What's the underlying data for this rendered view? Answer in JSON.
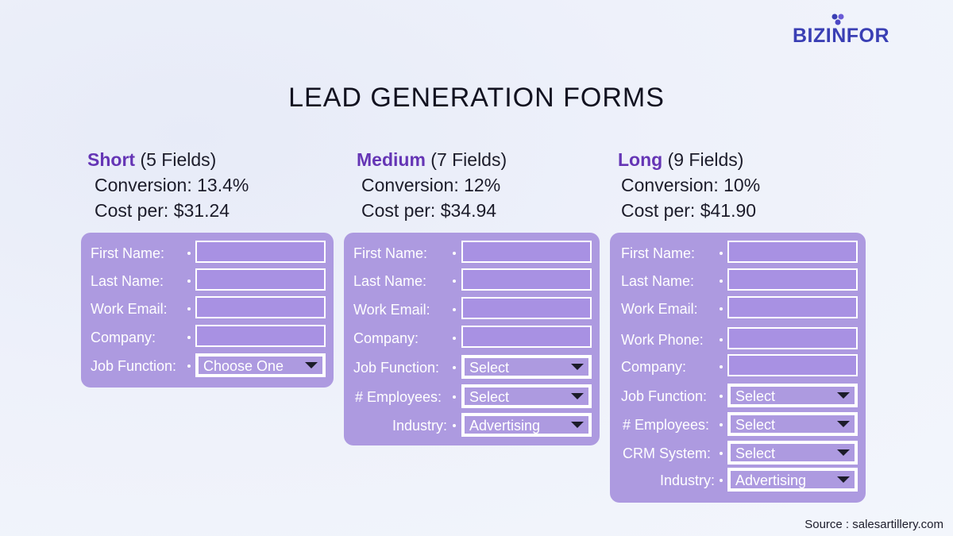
{
  "brand": {
    "name": "BIZINFOR",
    "color": "#3a3fb4"
  },
  "title": "LEAD GENERATION FORMS",
  "accent_color": "#6535b5",
  "form_color": "#ad9ae0",
  "forms": [
    {
      "tier": "Short",
      "fields_count": "(5 Fields)",
      "conversion": "Conversion: 13.4%",
      "cost": "Cost per: $31.24",
      "rows": [
        {
          "label": "First Name:",
          "type": "text"
        },
        {
          "label": "Last Name:",
          "type": "text"
        },
        {
          "label": "Work Email:",
          "type": "text"
        },
        {
          "label": "Company:",
          "type": "text"
        },
        {
          "label": "Job Function:",
          "type": "select",
          "value": "Choose One"
        }
      ]
    },
    {
      "tier": "Medium",
      "fields_count": "(7 Fields)",
      "conversion": "Conversion: 12%",
      "cost": "Cost per: $34.94",
      "rows": [
        {
          "label": "First Name:",
          "type": "text"
        },
        {
          "label": "Last Name:",
          "type": "text"
        },
        {
          "label": "Work Email:",
          "type": "text"
        },
        {
          "label": "Company:",
          "type": "text"
        },
        {
          "label": "Job Function:",
          "type": "select",
          "value": "Select"
        },
        {
          "label": "# Employees:",
          "type": "select",
          "value": "Select"
        },
        {
          "label": "Industry:",
          "type": "select",
          "value": "Advertising"
        }
      ]
    },
    {
      "tier": "Long",
      "fields_count": "(9 Fields)",
      "conversion": "Conversion: 10%",
      "cost": "Cost per: $41.90",
      "rows": [
        {
          "label": "First Name:",
          "type": "text"
        },
        {
          "label": "Last Name:",
          "type": "text"
        },
        {
          "label": "Work Email:",
          "type": "text"
        },
        {
          "label": "Work Phone:",
          "type": "text"
        },
        {
          "label": "Company:",
          "type": "text"
        },
        {
          "label": "Job Function:",
          "type": "select",
          "value": "Select"
        },
        {
          "label": "# Employees:",
          "type": "select",
          "value": "Select"
        },
        {
          "label": "CRM System:",
          "type": "select",
          "value": "Select"
        },
        {
          "label": "Industry:",
          "type": "select",
          "value": "Advertising"
        }
      ]
    }
  ],
  "source": "Source : salesartillery.com"
}
